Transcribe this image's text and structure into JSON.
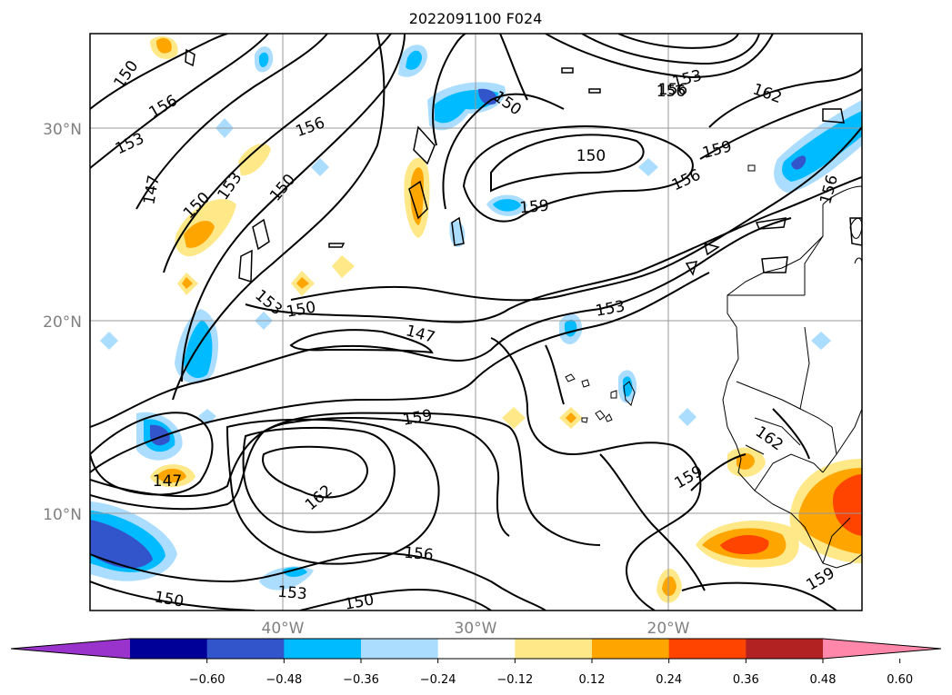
{
  "title": "2022091100 F024",
  "map": {
    "lat_labels": [
      "30°N",
      "20°N",
      "10°N"
    ],
    "lon_labels": [
      "40°W",
      "30°W",
      "20°W"
    ],
    "gridlines": true,
    "contour_labels": [
      "150",
      "156",
      "153",
      "147",
      "150",
      "153",
      "150",
      "156",
      "153",
      "150",
      "147",
      "150",
      "156",
      "159",
      "153",
      "147",
      "159",
      "162",
      "156",
      "150",
      "153",
      "150",
      "150",
      "153",
      "156",
      "162",
      "159",
      "156",
      "156",
      "159",
      "162",
      "159",
      "153",
      "150",
      "153"
    ]
  },
  "colorbar": {
    "tick_labels": [
      "−0.60",
      "−0.48",
      "−0.36",
      "−0.24",
      "−0.12",
      "0.12",
      "0.24",
      "0.36",
      "0.48",
      "0.60"
    ],
    "colors": [
      "#9933cc",
      "#000099",
      "#3355cc",
      "#00bbff",
      "#aaddff",
      "#ffffff",
      "#ffe888",
      "#ffa500",
      "#ff4400",
      "#b22222",
      "#ff88aa"
    ]
  }
}
